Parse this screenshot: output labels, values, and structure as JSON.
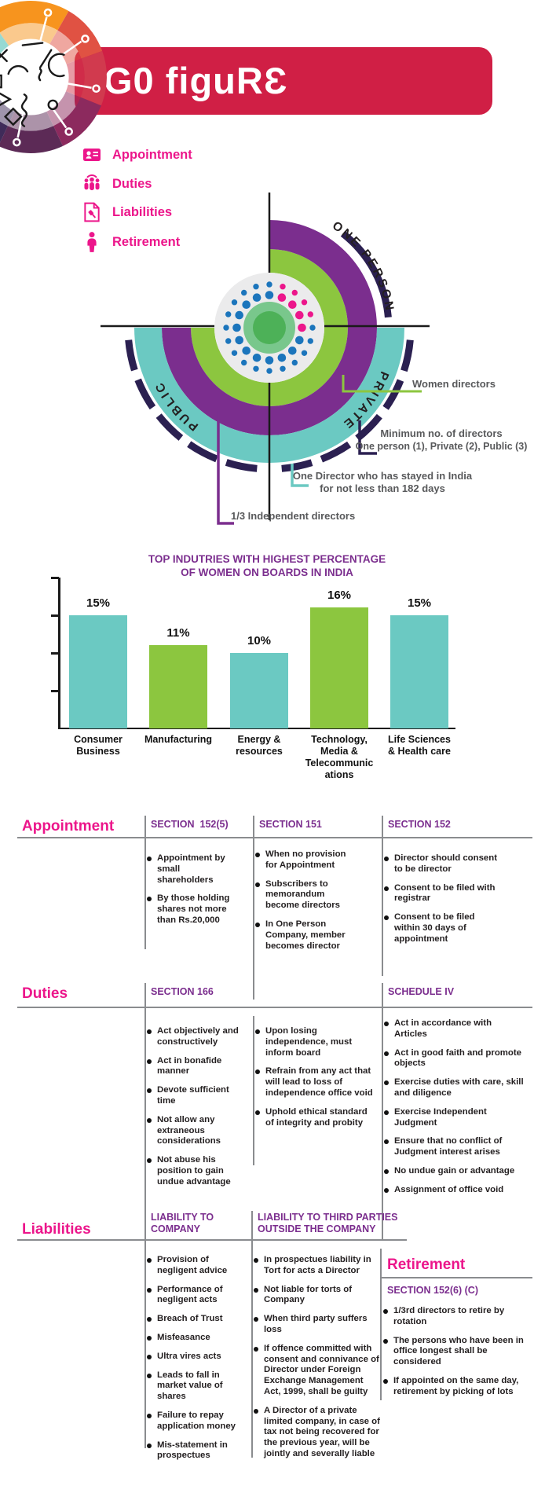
{
  "header": {
    "title": "G0 figuRƐ"
  },
  "legend": {
    "items": [
      {
        "label": "Appointment",
        "icon": "id-card-icon"
      },
      {
        "label": "Duties",
        "icon": "people-icon"
      },
      {
        "label": "Liabilities",
        "icon": "gavel-document-icon"
      },
      {
        "label": "Retirement",
        "icon": "person-icon"
      }
    ]
  },
  "radial": {
    "quadrants": [
      "ONE PERSON",
      "PRIVATE",
      "PUBLIC"
    ],
    "callouts": {
      "women": "Women directors",
      "min_line1": "Minimum no. of directors",
      "min_line2": "One person (1), Private (2), Public (3)",
      "resident_line1": "One Director who has stayed in India",
      "resident_line2": "for not less than 182 days",
      "independent": "1/3 Independent directors"
    }
  },
  "chart_data": {
    "type": "bar",
    "title": "TOP INDUTRIES WITH HIGHEST PERCENTAGE OF WOMEN ON BOARDS IN INDIA",
    "title_lines": [
      "TOP INDUTRIES WITH HIGHEST PERCENTAGE",
      "OF WOMEN ON BOARDS IN INDIA"
    ],
    "categories": [
      "Consumer Business",
      "Manufacturing",
      "Energy & resources",
      "Technology, Media & Telecommunications",
      "Life Sciences & Health care"
    ],
    "category_lines": [
      [
        "Consumer",
        "Business"
      ],
      [
        "Manufacturing"
      ],
      [
        "Energy &",
        "resources"
      ],
      [
        "Technology,",
        "Media &",
        "Telecommunic",
        "ations"
      ],
      [
        "Life Sciences",
        "& Health care"
      ]
    ],
    "values": [
      15,
      11,
      10,
      16,
      15
    ],
    "labels": [
      "15%",
      "11%",
      "10%",
      "16%",
      "15%"
    ],
    "unit": "%",
    "bar_colors": [
      "#6BC9C2",
      "#8CC63F",
      "#6BC9C2",
      "#8CC63F",
      "#6BC9C2"
    ],
    "xlabel": "",
    "ylabel": "",
    "ylim": [
      0,
      20
    ],
    "ytick_step": 5,
    "grid": false,
    "legend_position": "none"
  },
  "sections": {
    "appointment": {
      "title": "Appointment",
      "columns": [
        {
          "header": "SECTION  152(5)",
          "items": [
            "Appointment by small shareholders",
            "By those holding shares not more than Rs.20,000"
          ]
        },
        {
          "header": "SECTION 151",
          "items": [
            "When no provision for Appointment",
            "Subscribers to memorandum become directors",
            "In One Person Company, member becomes director"
          ]
        },
        {
          "header": "SECTION 152",
          "items": [
            "Director should consent to be director",
            "Consent to be filed with registrar",
            "Consent to be filed within 30 days of appointment"
          ]
        }
      ]
    },
    "duties": {
      "title": "Duties",
      "columns": [
        {
          "header": "SECTION 166",
          "items": [
            "Act objectively and constructively",
            "Act in bonafide manner",
            "Devote sufficient time",
            "Not allow any extraneous considerations",
            "Not abuse his position to gain undue advantage"
          ]
        },
        {
          "header": "",
          "items": [
            "Upon losing independence, must inform board",
            "Refrain from any act that will lead to loss of independence office void",
            "Uphold ethical standard of integrity and probity"
          ]
        },
        {
          "header": "SCHEDULE IV",
          "items": [
            "Act in accordance with Articles",
            "Act in good faith and promote objects",
            "Exercise duties with care, skill and diligence",
            "Exercise Independent Judgment",
            "Ensure that no conflict of Judgment interest arises",
            "No undue gain or advantage",
            "Assignment of office void"
          ]
        }
      ]
    },
    "liabilities": {
      "title": "Liabilities",
      "columns": [
        {
          "header": "LIABILITY TO\nCOMPANY",
          "items": [
            "Provision of negligent advice",
            "Performance of negligent acts",
            "Breach of Trust",
            "Misfeasance",
            "Ultra vires acts",
            "Leads to fall in market value of shares",
            "Failure to repay application money",
            "Mis-statement in prospectues"
          ]
        },
        {
          "header": "LIABILITY TO THIRD PARTIES\nOUTSIDE THE COMPANY",
          "items": [
            "In prospectues liability in Tort for acts a Director",
            "Not liable for torts of Company",
            "When third party suffers loss",
            "If offence committed with consent and connivance of Director under Foreign Exchange Management Act, 1999, shall be guilty",
            "A Director of a private limited company, in case of tax not being recovered for the previous year, will be jointly and severally liable"
          ]
        }
      ]
    },
    "retirement": {
      "title": "Retirement",
      "header": "SECTION 152(6) (C)",
      "items": [
        "1/3rd directors to retire by rotation",
        "The persons who have been in office longest shall be considered",
        "If appointed on the same day, retirement by picking of lots"
      ]
    }
  },
  "colors": {
    "banner_red": "#D01F45",
    "pink": "#EC168B",
    "purple": "#7B2E8E",
    "green": "#8CC63F",
    "teal": "#6BC9C2",
    "navy": "#2B2051",
    "dot_blue": "#1B75BC",
    "dot_pink": "#EC168B",
    "grey_circle": "#EBEBEC",
    "center_green_outer": "#79C78C",
    "center_green_inner": "#4DB158",
    "text_dark": "#231F20",
    "grey_text": "#58595B"
  }
}
